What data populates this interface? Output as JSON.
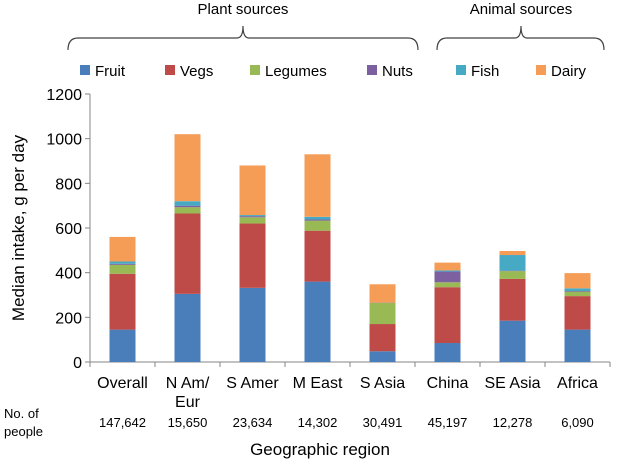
{
  "chart_data": {
    "type": "bar",
    "stacked": true,
    "xlabel": "Geographic region",
    "ylabel": "Median intake, g per day",
    "ylim": [
      0,
      1200
    ],
    "yticks": [
      0,
      200,
      400,
      600,
      800,
      1000,
      1200
    ],
    "categories": [
      "Overall",
      "N Am/\nEur",
      "S Amer",
      "M East",
      "S Asia",
      "China",
      "SE Asia",
      "Africa"
    ],
    "series": [
      {
        "name": "Fruit",
        "color": "#4a7ebb",
        "values": [
          145,
          305,
          332,
          360,
          48,
          85,
          185,
          145
        ]
      },
      {
        "name": "Vegs",
        "color": "#be4b48",
        "values": [
          250,
          360,
          288,
          228,
          122,
          250,
          187,
          150
        ]
      },
      {
        "name": "Legumes",
        "color": "#98b954",
        "values": [
          40,
          28,
          28,
          45,
          95,
          22,
          35,
          20
        ]
      },
      {
        "name": "Nuts",
        "color": "#7d60a0",
        "values": [
          5,
          7,
          5,
          5,
          1,
          48,
          2,
          3
        ]
      },
      {
        "name": "Fish",
        "color": "#46aac5",
        "values": [
          10,
          20,
          5,
          12,
          0,
          5,
          70,
          12
        ]
      },
      {
        "name": "Dairy",
        "color": "#f59d56",
        "values": [
          110,
          300,
          222,
          280,
          82,
          35,
          18,
          68
        ]
      }
    ],
    "legend_position": "top",
    "group_labels": [
      {
        "label": "Plant sources",
        "from": 0,
        "to": 4
      },
      {
        "label": "Animal sources",
        "from": 5,
        "to": 7
      }
    ],
    "people_label": [
      "No. of",
      "people"
    ],
    "people": [
      "147,642",
      "15,650",
      "23,634",
      "14,302",
      "30,491",
      "45,197",
      "12,278",
      "6,090"
    ]
  }
}
